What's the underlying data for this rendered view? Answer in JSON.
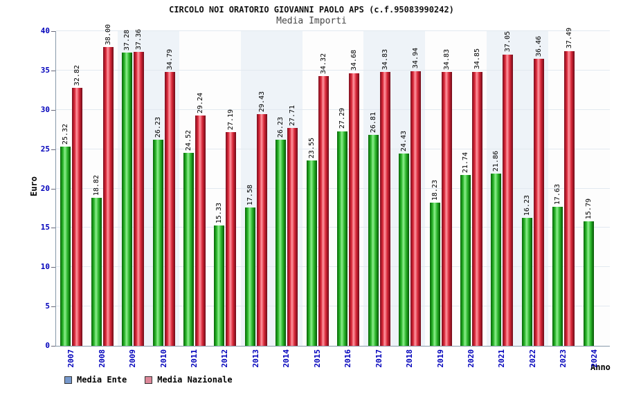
{
  "header": {
    "title": "CIRCOLO NOI ORATORIO GIOVANNI PAOLO APS (c.f.95083990242)",
    "subtitle": "Media Importi"
  },
  "chart_data": {
    "type": "bar",
    "title": "CIRCOLO NOI ORATORIO GIOVANNI PAOLO APS (c.f.95083990242)",
    "subtitle": "Media Importi",
    "categories": [
      "2007",
      "2008",
      "2009",
      "2010",
      "2011",
      "2012",
      "2013",
      "2014",
      "2015",
      "2016",
      "2017",
      "2018",
      "2019",
      "2020",
      "2021",
      "2022",
      "2023",
      "2024"
    ],
    "series": [
      {
        "name": "Media Ente",
        "legend_color": "#7799cc",
        "bar_color": "#22bb22",
        "values": [
          25.32,
          18.82,
          37.28,
          26.23,
          24.52,
          15.33,
          17.58,
          26.23,
          23.55,
          27.29,
          26.81,
          24.43,
          18.23,
          21.74,
          21.86,
          16.23,
          17.63,
          15.79
        ]
      },
      {
        "name": "Media Nazionale",
        "legend_color": "#dd8899",
        "bar_color": "#ee2233",
        "values": [
          32.82,
          38.0,
          37.36,
          34.79,
          29.24,
          27.19,
          29.43,
          27.71,
          34.32,
          34.68,
          34.83,
          34.94,
          34.83,
          34.85,
          37.05,
          36.46,
          37.49,
          null
        ]
      }
    ],
    "xlabel": "Anno",
    "ylabel": "Euro",
    "ylim": [
      0,
      40
    ],
    "yticks": [
      0,
      5,
      10,
      15,
      20,
      25,
      30,
      35,
      40
    ],
    "grid": true,
    "legend_position": "bottom-left",
    "axis_text_color": "#0000bb",
    "value_label_format": "2dp"
  }
}
